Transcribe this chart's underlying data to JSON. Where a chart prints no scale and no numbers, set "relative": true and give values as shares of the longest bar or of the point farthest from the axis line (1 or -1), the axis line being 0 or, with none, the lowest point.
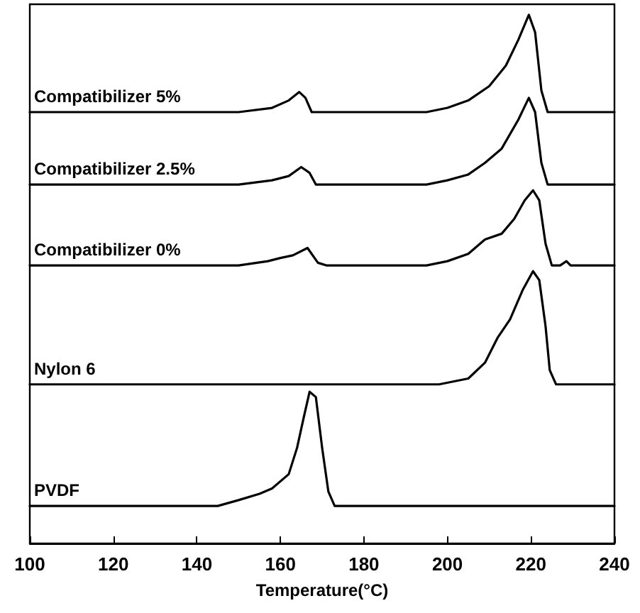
{
  "chart_data": {
    "type": "line",
    "xlabel": "Temperature(°C)",
    "relative": true,
    "xlim": [
      100,
      240
    ],
    "xticks": [
      100,
      120,
      140,
      160,
      180,
      200,
      220,
      240
    ],
    "grid": false,
    "legend": false,
    "marker": "none",
    "line_style": "solid",
    "series": [
      {
        "name": "Compatibilizer 5%",
        "color": "#000000",
        "x": [
          100,
          150,
          158,
          162,
          164.5,
          166,
          167.5,
          195,
          200,
          205,
          210,
          214,
          217,
          219.5,
          221,
          222.5,
          224,
          240
        ],
        "values": [
          0.816,
          0.816,
          0.824,
          0.838,
          0.854,
          0.843,
          0.816,
          0.816,
          0.824,
          0.838,
          0.865,
          0.904,
          0.953,
          1.0,
          0.967,
          0.857,
          0.816,
          0.816
        ]
      },
      {
        "name": "Compatibilizer 2.5%",
        "color": "#000000",
        "x": [
          100,
          150,
          158,
          162,
          165,
          167,
          168.5,
          195,
          200,
          205,
          209,
          213,
          217,
          219.5,
          221,
          222.5,
          224,
          240
        ],
        "values": [
          0.679,
          0.679,
          0.687,
          0.695,
          0.712,
          0.701,
          0.679,
          0.679,
          0.687,
          0.698,
          0.72,
          0.747,
          0.802,
          0.843,
          0.816,
          0.72,
          0.679,
          0.679
        ]
      },
      {
        "name": "Compatibilizer 0%",
        "color": "#000000",
        "x": [
          100,
          150,
          157,
          160,
          163,
          166.5,
          169,
          171,
          195,
          200,
          205,
          209,
          213,
          216,
          218.5,
          220.5,
          222,
          223.5,
          225,
          227,
          228.5,
          229.5,
          240
        ],
        "values": [
          0.526,
          0.526,
          0.534,
          0.54,
          0.545,
          0.559,
          0.531,
          0.526,
          0.526,
          0.534,
          0.548,
          0.575,
          0.586,
          0.614,
          0.649,
          0.668,
          0.649,
          0.567,
          0.526,
          0.526,
          0.534,
          0.526,
          0.526
        ]
      },
      {
        "name": "Nylon 6",
        "color": "#000000",
        "x": [
          100,
          198,
          205,
          209,
          212,
          215,
          218,
          220.5,
          222,
          223.5,
          224.5,
          226,
          240
        ],
        "values": [
          0.301,
          0.301,
          0.312,
          0.342,
          0.389,
          0.424,
          0.479,
          0.515,
          0.498,
          0.411,
          0.328,
          0.301,
          0.301
        ]
      },
      {
        "name": "PVDF",
        "color": "#000000",
        "x": [
          100,
          145,
          150,
          155,
          158,
          162,
          164,
          165.5,
          167,
          168.5,
          170,
          171.5,
          173,
          240
        ],
        "values": [
          0.071,
          0.071,
          0.082,
          0.094,
          0.104,
          0.131,
          0.181,
          0.235,
          0.287,
          0.277,
          0.181,
          0.098,
          0.071,
          0.071
        ]
      }
    ]
  }
}
